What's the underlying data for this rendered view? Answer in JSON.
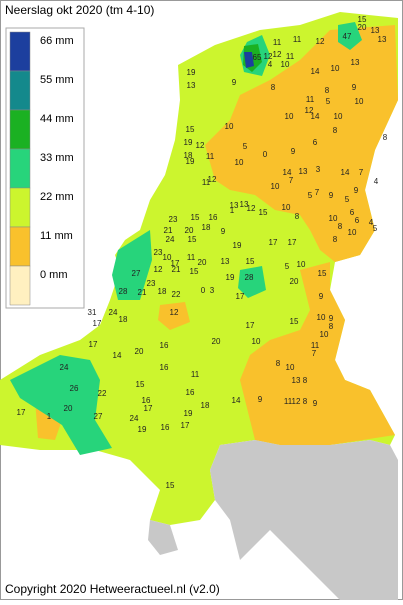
{
  "title": "Neerslag okt 2020 (tm 4-10)",
  "legend": [
    {
      "label": "66 mm",
      "color": "#1c3f9e"
    },
    {
      "label": "55 mm",
      "color": "#14898c"
    },
    {
      "label": "44 mm",
      "color": "#1bb122"
    },
    {
      "label": "33 mm",
      "color": "#27d47b"
    },
    {
      "label": "22 mm",
      "color": "#ccf52e"
    },
    {
      "label": "11 mm",
      "color": "#f9c12c"
    },
    {
      "label": "0 mm",
      "color": "#fff0c0"
    }
  ],
  "stations": [
    15,
    20,
    47,
    13,
    13,
    11,
    11,
    12,
    65,
    12,
    12,
    11,
    10,
    4,
    13,
    10,
    14,
    19,
    13,
    9,
    8,
    9,
    8,
    10,
    11,
    5,
    12,
    10,
    14,
    10,
    8,
    10,
    8,
    6,
    15,
    19,
    12,
    18,
    19,
    11,
    5,
    10,
    0,
    9,
    14,
    13,
    7,
    3,
    11,
    12,
    5,
    14,
    7,
    4,
    9,
    9,
    7,
    10,
    13,
    1,
    13,
    12,
    15,
    10,
    8,
    5,
    6,
    6,
    4,
    5,
    10,
    8,
    8,
    10,
    23,
    15,
    16,
    21,
    24,
    20,
    18,
    15,
    9,
    19,
    17,
    17,
    10,
    5,
    13,
    15,
    23,
    10,
    17,
    11,
    20,
    12,
    21,
    15,
    27,
    23,
    19,
    28,
    20,
    21,
    22,
    0,
    3,
    17,
    15,
    9,
    28,
    18,
    31,
    17,
    24,
    18,
    12,
    17,
    15,
    10,
    10,
    9,
    8,
    20,
    17,
    16,
    10,
    14,
    20,
    24,
    16,
    11,
    7,
    10,
    11,
    8,
    22,
    15,
    16,
    14,
    9,
    11,
    12,
    8,
    9,
    13,
    26,
    20,
    27,
    17,
    1,
    16,
    17,
    18,
    19,
    24,
    19,
    15,
    8,
    17,
    16
  ],
  "copyright": "Copyright 2020 Hetweeractueel.nl (v2.0)"
}
